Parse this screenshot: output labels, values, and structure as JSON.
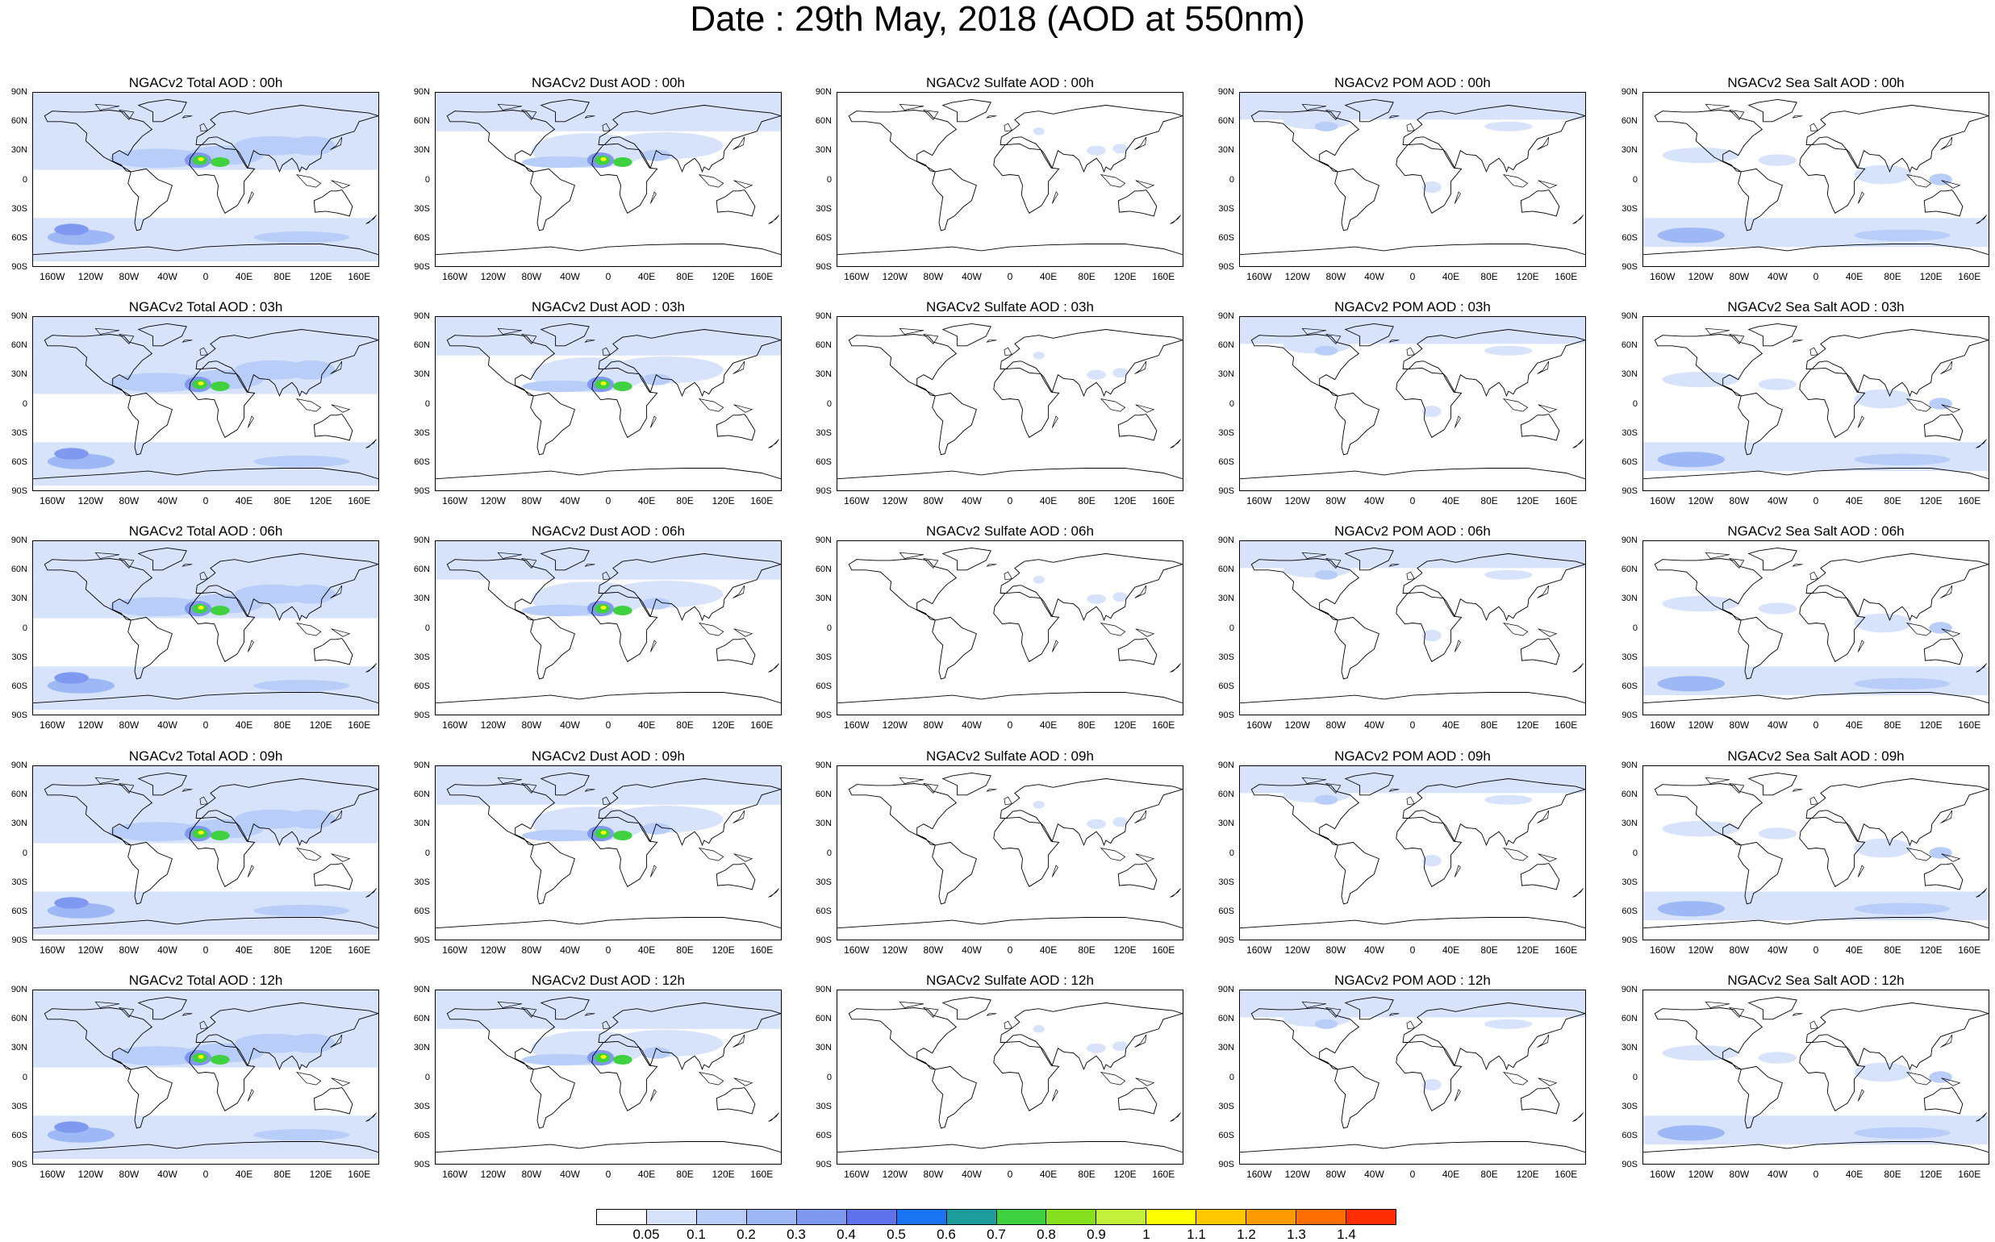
{
  "title": "Date : 29th May, 2018 (AOD at 550nm)",
  "map_axes": {
    "lat_ticks": [
      "90N",
      "60N",
      "30N",
      "0",
      "30S",
      "60S",
      "90S"
    ],
    "lon_ticks": [
      "160W",
      "120W",
      "80W",
      "40W",
      "0",
      "40E",
      "80E",
      "120E",
      "160E"
    ]
  },
  "panels": [
    {
      "title": "NGACv2 Total AOD : 00h",
      "species": "total",
      "hour": "00h"
    },
    {
      "title": "NGACv2 Dust AOD : 00h",
      "species": "dust",
      "hour": "00h"
    },
    {
      "title": "NGACv2 Sulfate AOD : 00h",
      "species": "sulfate",
      "hour": "00h"
    },
    {
      "title": "NGACv2 POM AOD : 00h",
      "species": "pom",
      "hour": "00h"
    },
    {
      "title": "NGACv2 Sea Salt AOD : 00h",
      "species": "seasalt",
      "hour": "00h"
    },
    {
      "title": "NGACv2 Total AOD : 03h",
      "species": "total",
      "hour": "03h"
    },
    {
      "title": "NGACv2 Dust AOD : 03h",
      "species": "dust",
      "hour": "03h"
    },
    {
      "title": "NGACv2 Sulfate AOD : 03h",
      "species": "sulfate",
      "hour": "03h"
    },
    {
      "title": "NGACv2 POM AOD : 03h",
      "species": "pom",
      "hour": "03h"
    },
    {
      "title": "NGACv2 Sea Salt AOD : 03h",
      "species": "seasalt",
      "hour": "03h"
    },
    {
      "title": "NGACv2 Total AOD : 06h",
      "species": "total",
      "hour": "06h"
    },
    {
      "title": "NGACv2 Dust AOD : 06h",
      "species": "dust",
      "hour": "06h"
    },
    {
      "title": "NGACv2 Sulfate AOD : 06h",
      "species": "sulfate",
      "hour": "06h"
    },
    {
      "title": "NGACv2 POM AOD : 06h",
      "species": "pom",
      "hour": "06h"
    },
    {
      "title": "NGACv2 Sea Salt AOD : 06h",
      "species": "seasalt",
      "hour": "06h"
    },
    {
      "title": "NGACv2 Total AOD : 09h",
      "species": "total",
      "hour": "09h"
    },
    {
      "title": "NGACv2 Dust AOD : 09h",
      "species": "dust",
      "hour": "09h"
    },
    {
      "title": "NGACv2 Sulfate AOD : 09h",
      "species": "sulfate",
      "hour": "09h"
    },
    {
      "title": "NGACv2 POM AOD : 09h",
      "species": "pom",
      "hour": "09h"
    },
    {
      "title": "NGACv2 Sea Salt  AOD : 09h",
      "species": "seasalt",
      "hour": "09h"
    },
    {
      "title": "NGACv2 Total AOD  : 12h",
      "species": "total",
      "hour": "12h"
    },
    {
      "title": "NGACv2 Dust AOD : 12h",
      "species": "dust",
      "hour": "12h"
    },
    {
      "title": "NGACv2 Sulfate AOD : 12h",
      "species": "sulfate",
      "hour": "12h"
    },
    {
      "title": "NGACv2 POM  AOD : 12h",
      "species": "pom",
      "hour": "12h"
    },
    {
      "title": "NGACv2 Sea Salt  AOD : 12h",
      "species": "seasalt",
      "hour": "12h"
    }
  ],
  "colorbar": {
    "labels": [
      "0.05",
      "0.1",
      "0.2",
      "0.3",
      "0.4",
      "0.5",
      "0.6",
      "0.7",
      "0.8",
      "0.9",
      "1",
      "1.1",
      "1.2",
      "1.3",
      "1.4"
    ],
    "colors": [
      "#ffffff",
      "#d7e3fb",
      "#b8cdf7",
      "#9db8f4",
      "#8099f0",
      "#5f73ec",
      "#1a73f0",
      "#1e9c9c",
      "#3fd13f",
      "#86e01e",
      "#c3f03a",
      "#ffff00",
      "#ffc800",
      "#ff9b00",
      "#ff6e00",
      "#ff2d00"
    ]
  },
  "aod_colors": {
    "light": "#d7e3fb",
    "medium": "#b8cdf7",
    "heavy": "#9db8f4",
    "dense": "#8099f0",
    "green": "#3fd13f",
    "yellow": "#ffff00",
    "orange": "#ff9b00"
  }
}
